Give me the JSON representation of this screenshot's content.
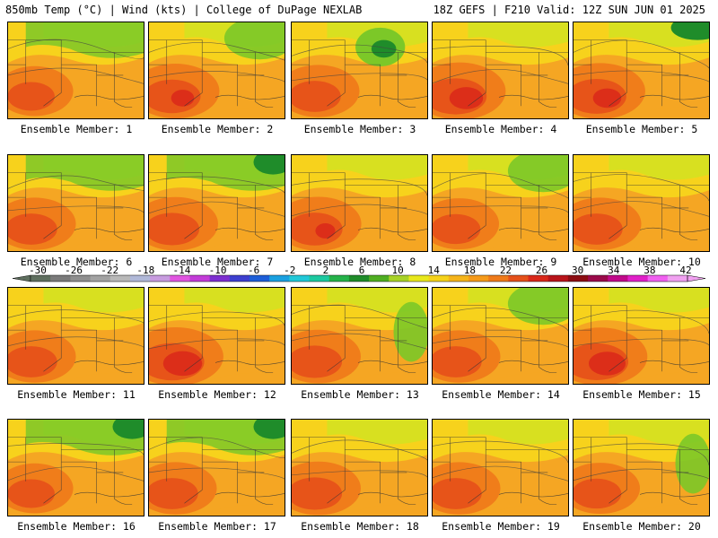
{
  "header": {
    "left": "850mb Temp (°C) | Wind (kts) | College of DuPage NEXLAB",
    "right": "18Z GEFS | F210 Valid: 12Z SUN JUN 01 2025"
  },
  "members": [
    {
      "label": "Ensemble Member: 1",
      "warmth": 0.45,
      "cool_zone": "north"
    },
    {
      "label": "Ensemble Member: 2",
      "warmth": 0.65,
      "cool_zone": "northeast"
    },
    {
      "label": "Ensemble Member: 3",
      "warmth": 0.55,
      "cool_zone": "low-center"
    },
    {
      "label": "Ensemble Member: 4",
      "warmth": 0.75,
      "cool_zone": "none"
    },
    {
      "label": "Ensemble Member: 5",
      "warmth": 0.7,
      "cool_zone": "northeast-corner"
    },
    {
      "label": "Ensemble Member: 6",
      "warmth": 0.55,
      "cool_zone": "north"
    },
    {
      "label": "Ensemble Member: 7",
      "warmth": 0.6,
      "cool_zone": "north-wide"
    },
    {
      "label": "Ensemble Member: 8",
      "warmth": 0.62,
      "cool_zone": "none"
    },
    {
      "label": "Ensemble Member: 9",
      "warmth": 0.5,
      "cool_zone": "northeast"
    },
    {
      "label": "Ensemble Member: 10",
      "warmth": 0.55,
      "cool_zone": "none"
    },
    {
      "label": "Ensemble Member: 11",
      "warmth": 0.55,
      "cool_zone": "none"
    },
    {
      "label": "Ensemble Member: 12",
      "warmth": 0.8,
      "cool_zone": "none"
    },
    {
      "label": "Ensemble Member: 13",
      "warmth": 0.6,
      "cool_zone": "east"
    },
    {
      "label": "Ensemble Member: 14",
      "warmth": 0.55,
      "cool_zone": "northeast"
    },
    {
      "label": "Ensemble Member: 15",
      "warmth": 0.78,
      "cool_zone": "none"
    },
    {
      "label": "Ensemble Member: 16",
      "warmth": 0.45,
      "cool_zone": "north-wide"
    },
    {
      "label": "Ensemble Member: 17",
      "warmth": 0.55,
      "cool_zone": "north-wide"
    },
    {
      "label": "Ensemble Member: 18",
      "warmth": 0.6,
      "cool_zone": "none"
    },
    {
      "label": "Ensemble Member: 19",
      "warmth": 0.55,
      "cool_zone": "none"
    },
    {
      "label": "Ensemble Member: 20",
      "warmth": 0.5,
      "cool_zone": "east"
    }
  ],
  "colorbar": {
    "labels": [
      "-30",
      "-26",
      "-22",
      "-18",
      "-14",
      "-10",
      "-6",
      "-2",
      "2",
      "6",
      "10",
      "14",
      "18",
      "22",
      "26",
      "30",
      "34",
      "38",
      "42"
    ],
    "colors": [
      "#5f6f5f",
      "#7a7a7a",
      "#8e8e8e",
      "#a2a2a2",
      "#b8b8b8",
      "#b0b8d8",
      "#c79bdf",
      "#e055e0",
      "#c23cd8",
      "#7d2fd0",
      "#3d3fcf",
      "#1d5ed8",
      "#1aa0e0",
      "#21c8d8",
      "#1dc9a0",
      "#25b24a",
      "#1f8c2a",
      "#4fae22",
      "#a7d227",
      "#e8e81c",
      "#f5d21a",
      "#f5b41a",
      "#f59a1a",
      "#ef7a1a",
      "#e5501a",
      "#d9281a",
      "#b8141a",
      "#8c0d12",
      "#9a0a4a",
      "#c00a8a",
      "#e020c8",
      "#f060f0",
      "#f0a0f0"
    ]
  },
  "palette": {
    "cool": "#7cc828",
    "mild": "#d8e020",
    "warm_light": "#f7d21c",
    "warm": "#f5a623",
    "hot": "#ef7a1a",
    "hotter": "#e5501a",
    "red": "#d9281a",
    "deep_green": "#1f8c2a"
  }
}
